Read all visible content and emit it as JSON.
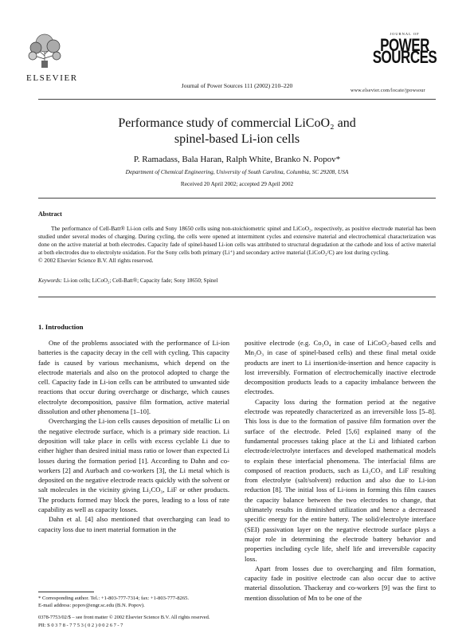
{
  "header": {
    "publisher": "ELSEVIER",
    "journal_ref": "Journal of Power Sources 111 (2002) 210–220",
    "jp_small": "JOURNAL OF",
    "jp_line1": "POWER",
    "jp_line2": "SOURCES",
    "site": "www.elsevier.com/locate/jpowsour"
  },
  "article": {
    "title_line1": "Performance study of commercial LiCoO₂ and",
    "title_line2": "spinel-based Li-ion cells",
    "authors": "P. Ramadass, Bala Haran, Ralph White, Branko N. Popov*",
    "affiliation": "Department of Chemical Engineering, University of South Carolina, Columbia, SC 29208, USA",
    "received": "Received 20 April 2002; accepted 29 April 2002"
  },
  "abstract": {
    "heading": "Abstract",
    "text": "The performance of Cell-Batt® Li-ion cells and Sony 18650 cells using non-stoichiometric spinel and LiCoO₂, respectively, as positive electrode material has been studied under several modes of charging. During cycling, the cells were opened at intermittent cycles and extensive material and electrochemical characterization was done on the active material at both electrodes. Capacity fade of spinel-based Li-ion cells was attributed to structural degradation at the cathode and loss of active material at both electrodes due to electrolyte oxidation. For the Sony cells both primary (Li⁺) and secondary active material (LiCoO₂/C) are lost during cycling.",
    "copyright": "© 2002 Elsevier Science B.V. All rights reserved.",
    "keywords_label": "Keywords:",
    "keywords": "Li-ion cells; LiCoO₂; Cell-Batt®; Capacity fade; Sony 18650; Spinel"
  },
  "intro": {
    "heading": "1. Introduction",
    "left_p1": "One of the problems associated with the performance of Li-ion batteries is the capacity decay in the cell with cycling. This capacity fade is caused by various mechanisms, which depend on the electrode materials and also on the protocol adopted to charge the cell. Capacity fade in Li-ion cells can be attributed to unwanted side reactions that occur during overcharge or discharge, which causes electrolyte decomposition, passive film formation, active material dissolution and other phenomena [1–10].",
    "left_p2": "Overcharging the Li-ion cells causes deposition of metallic Li on the negative electrode surface, which is a primary side reaction. Li deposition will take place in cells with excess cyclable Li due to either higher than desired initial mass ratio or lower than expected Li losses during the formation period [1]. According to Dahn and co-workers [2] and Aurbach and co-workers [3], the Li metal which is deposited on the negative electrode reacts quickly with the solvent or salt molecules in the vicinity giving Li₂CO₃, LiF or other products. The products formed may block the pores, leading to a loss of rate capability as well as capacity losses.",
    "left_p3": "Dahn et al. [4] also mentioned that overcharging can lead to capacity loss due to inert material formation in the",
    "right_p1": "positive electrode (e.g. Co₃O₄ in case of LiCoO₂-based cells and Mn₂O₃ in case of spinel-based cells) and these final metal oxide products are inert to Li insertion/de-insertion and hence capacity is lost irreversibly. Formation of electrochemically inactive electrode decomposition products leads to a capacity imbalance between the electrodes.",
    "right_p2": "Capacity loss during the formation period at the negative electrode was repeatedly characterized as an irreversible loss [5–8]. This loss is due to the formation of passive film formation over the surface of the electrode. Peled [5,6] explained many of the fundamental processes taking place at the Li and lithiated carbon electrode/electrolyte interfaces and developed mathematical models to explain these interfacial phenomena. The interfacial films are composed of reaction products, such as Li₂CO₃ and LiF resulting from electrolyte (salt/solvent) reduction and also due to Li-ion reduction [8]. The initial loss of Li-ions in forming this film causes the capacity balance between the two electrodes to change, that ultimately results in diminished utilization and hence a decreased specific energy for the entire battery. The solid/electrolyte interface (SEI) passivation layer on the negative electrode surface plays a major role in determining the electrode battery behavior and properties including cycle life, shelf life and irreversible capacity loss.",
    "right_p3": "Apart from losses due to overcharging and film formation, capacity fade in positive electrode can also occur due to active material dissolution. Thackeray and co-workers [9] was the first to mention dissolution of Mn to be one of the"
  },
  "footnote": {
    "corresponding": "* Corresponding author. Tel.: +1-803-777-7314; fax: +1-803-777-8265.",
    "email": "E-mail address: popov@engr.sc.edu (B.N. Popov)."
  },
  "bottom": {
    "line1": "0378-7753/02/$ – see front matter © 2002 Elsevier Science B.V. All rights reserved.",
    "line2": "PII: S 0 3 7 8 - 7 7 5 3 ( 0 2 ) 0 0 2 6 7 - 7"
  }
}
